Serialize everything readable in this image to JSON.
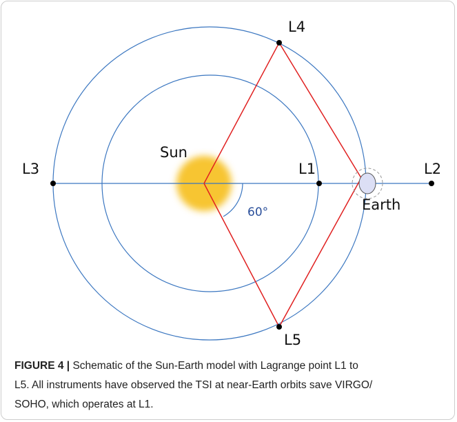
{
  "diagram": {
    "labels": {
      "l1": "L1",
      "l2": "L2",
      "l3": "L3",
      "l4": "L4",
      "l5": "L5",
      "sun": "Sun",
      "earth": "Earth",
      "angle": "60°"
    }
  },
  "caption": {
    "label": "FIGURE 4 |",
    "lines": [
      "Schematic of the Sun-Earth model with Lagrange point L1 to",
      "L5. All instruments have observed the TSI at near-Earth orbits save VIRGO/",
      "SOHO, which operates at L1."
    ]
  }
}
